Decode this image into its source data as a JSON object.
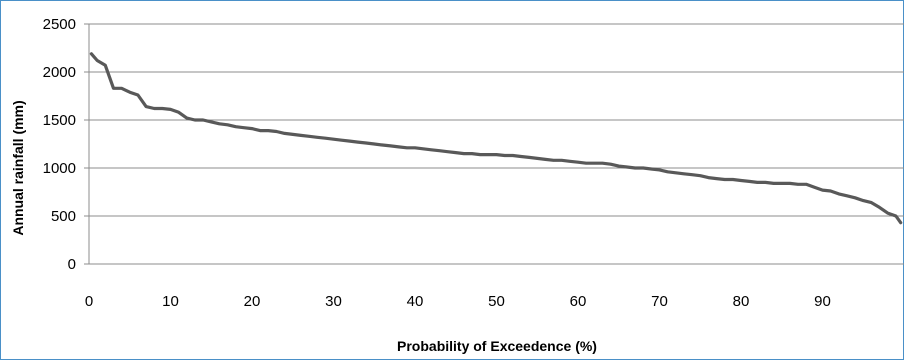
{
  "chart_data": {
    "type": "line",
    "title": "",
    "xlabel": "Probability of Exceedence (%)",
    "ylabel": "Annual rainfall  (mm)",
    "xlim": [
      0,
      100
    ],
    "ylim": [
      0,
      2500
    ],
    "x_ticks": [
      0,
      10,
      20,
      30,
      40,
      50,
      60,
      70,
      80,
      90
    ],
    "y_ticks": [
      0,
      500,
      1000,
      1500,
      2000,
      2500
    ],
    "grid": "horizontal",
    "legend": "none",
    "line_color": "#595959",
    "series": [
      {
        "x": [
          0.3,
          1.0,
          2.0,
          3.0,
          4.0,
          5.0,
          6.0,
          7.0,
          8.0,
          9.0,
          10.0,
          11.0,
          12.0,
          13.0,
          14.0,
          15.0,
          16.0,
          17.0,
          18.0,
          19.0,
          20.0,
          21.0,
          22.0,
          23.0,
          24.0,
          25.0,
          26.0,
          27.0,
          28.0,
          29.0,
          30.0,
          31.0,
          32.0,
          33.0,
          34.0,
          35.0,
          36.0,
          37.0,
          38.0,
          39.0,
          40.0,
          41.0,
          42.0,
          43.0,
          44.0,
          45.0,
          46.0,
          47.0,
          48.0,
          49.0,
          50.0,
          51.0,
          52.0,
          53.0,
          54.0,
          55.0,
          56.0,
          57.0,
          58.0,
          59.0,
          60.0,
          61.0,
          62.0,
          63.0,
          64.0,
          65.0,
          66.0,
          67.0,
          68.0,
          69.0,
          70.0,
          71.0,
          72.0,
          73.0,
          74.0,
          75.0,
          76.0,
          77.0,
          78.0,
          79.0,
          80.0,
          81.0,
          82.0,
          83.0,
          84.0,
          85.0,
          86.0,
          87.0,
          88.0,
          89.0,
          90.0,
          91.0,
          92.0,
          93.0,
          94.0,
          95.0,
          96.0,
          97.0,
          98.0,
          99.0,
          99.6
        ],
        "values": [
          2190,
          2120,
          2070,
          1830,
          1830,
          1790,
          1760,
          1640,
          1620,
          1620,
          1610,
          1580,
          1520,
          1500,
          1500,
          1480,
          1460,
          1450,
          1430,
          1420,
          1410,
          1390,
          1390,
          1380,
          1360,
          1350,
          1340,
          1330,
          1320,
          1310,
          1300,
          1290,
          1280,
          1270,
          1260,
          1250,
          1240,
          1230,
          1220,
          1210,
          1210,
          1200,
          1190,
          1180,
          1170,
          1160,
          1150,
          1150,
          1140,
          1140,
          1140,
          1130,
          1130,
          1120,
          1110,
          1100,
          1090,
          1080,
          1080,
          1070,
          1060,
          1050,
          1050,
          1050,
          1040,
          1020,
          1010,
          1000,
          1000,
          990,
          980,
          960,
          950,
          940,
          930,
          920,
          900,
          890,
          880,
          880,
          870,
          860,
          850,
          850,
          840,
          840,
          840,
          830,
          830,
          800,
          770,
          760,
          730,
          710,
          690,
          660,
          640,
          590,
          530,
          500,
          430
        ]
      }
    ]
  }
}
